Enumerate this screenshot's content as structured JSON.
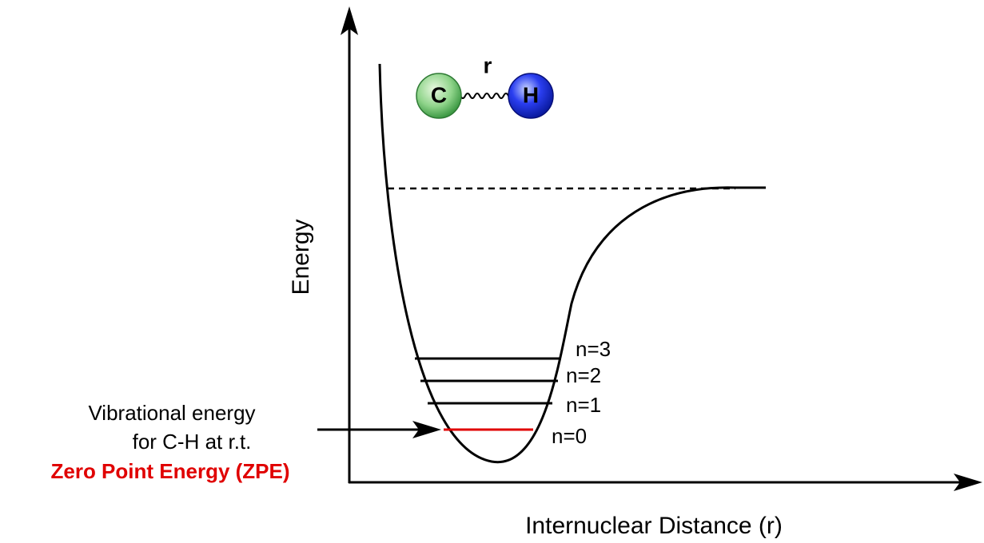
{
  "axes": {
    "y_label": "Energy",
    "x_label": "Internuclear Distance (r)"
  },
  "molecule": {
    "atoms": [
      "C",
      "H"
    ],
    "bond_label": "r"
  },
  "levels": [
    "n=3",
    "n=2",
    "n=1",
    "n=0"
  ],
  "annotation": {
    "lines": [
      "Vibrational energy",
      "for C-H at r.t."
    ],
    "highlight": "Zero Point Energy (ZPE)"
  }
}
